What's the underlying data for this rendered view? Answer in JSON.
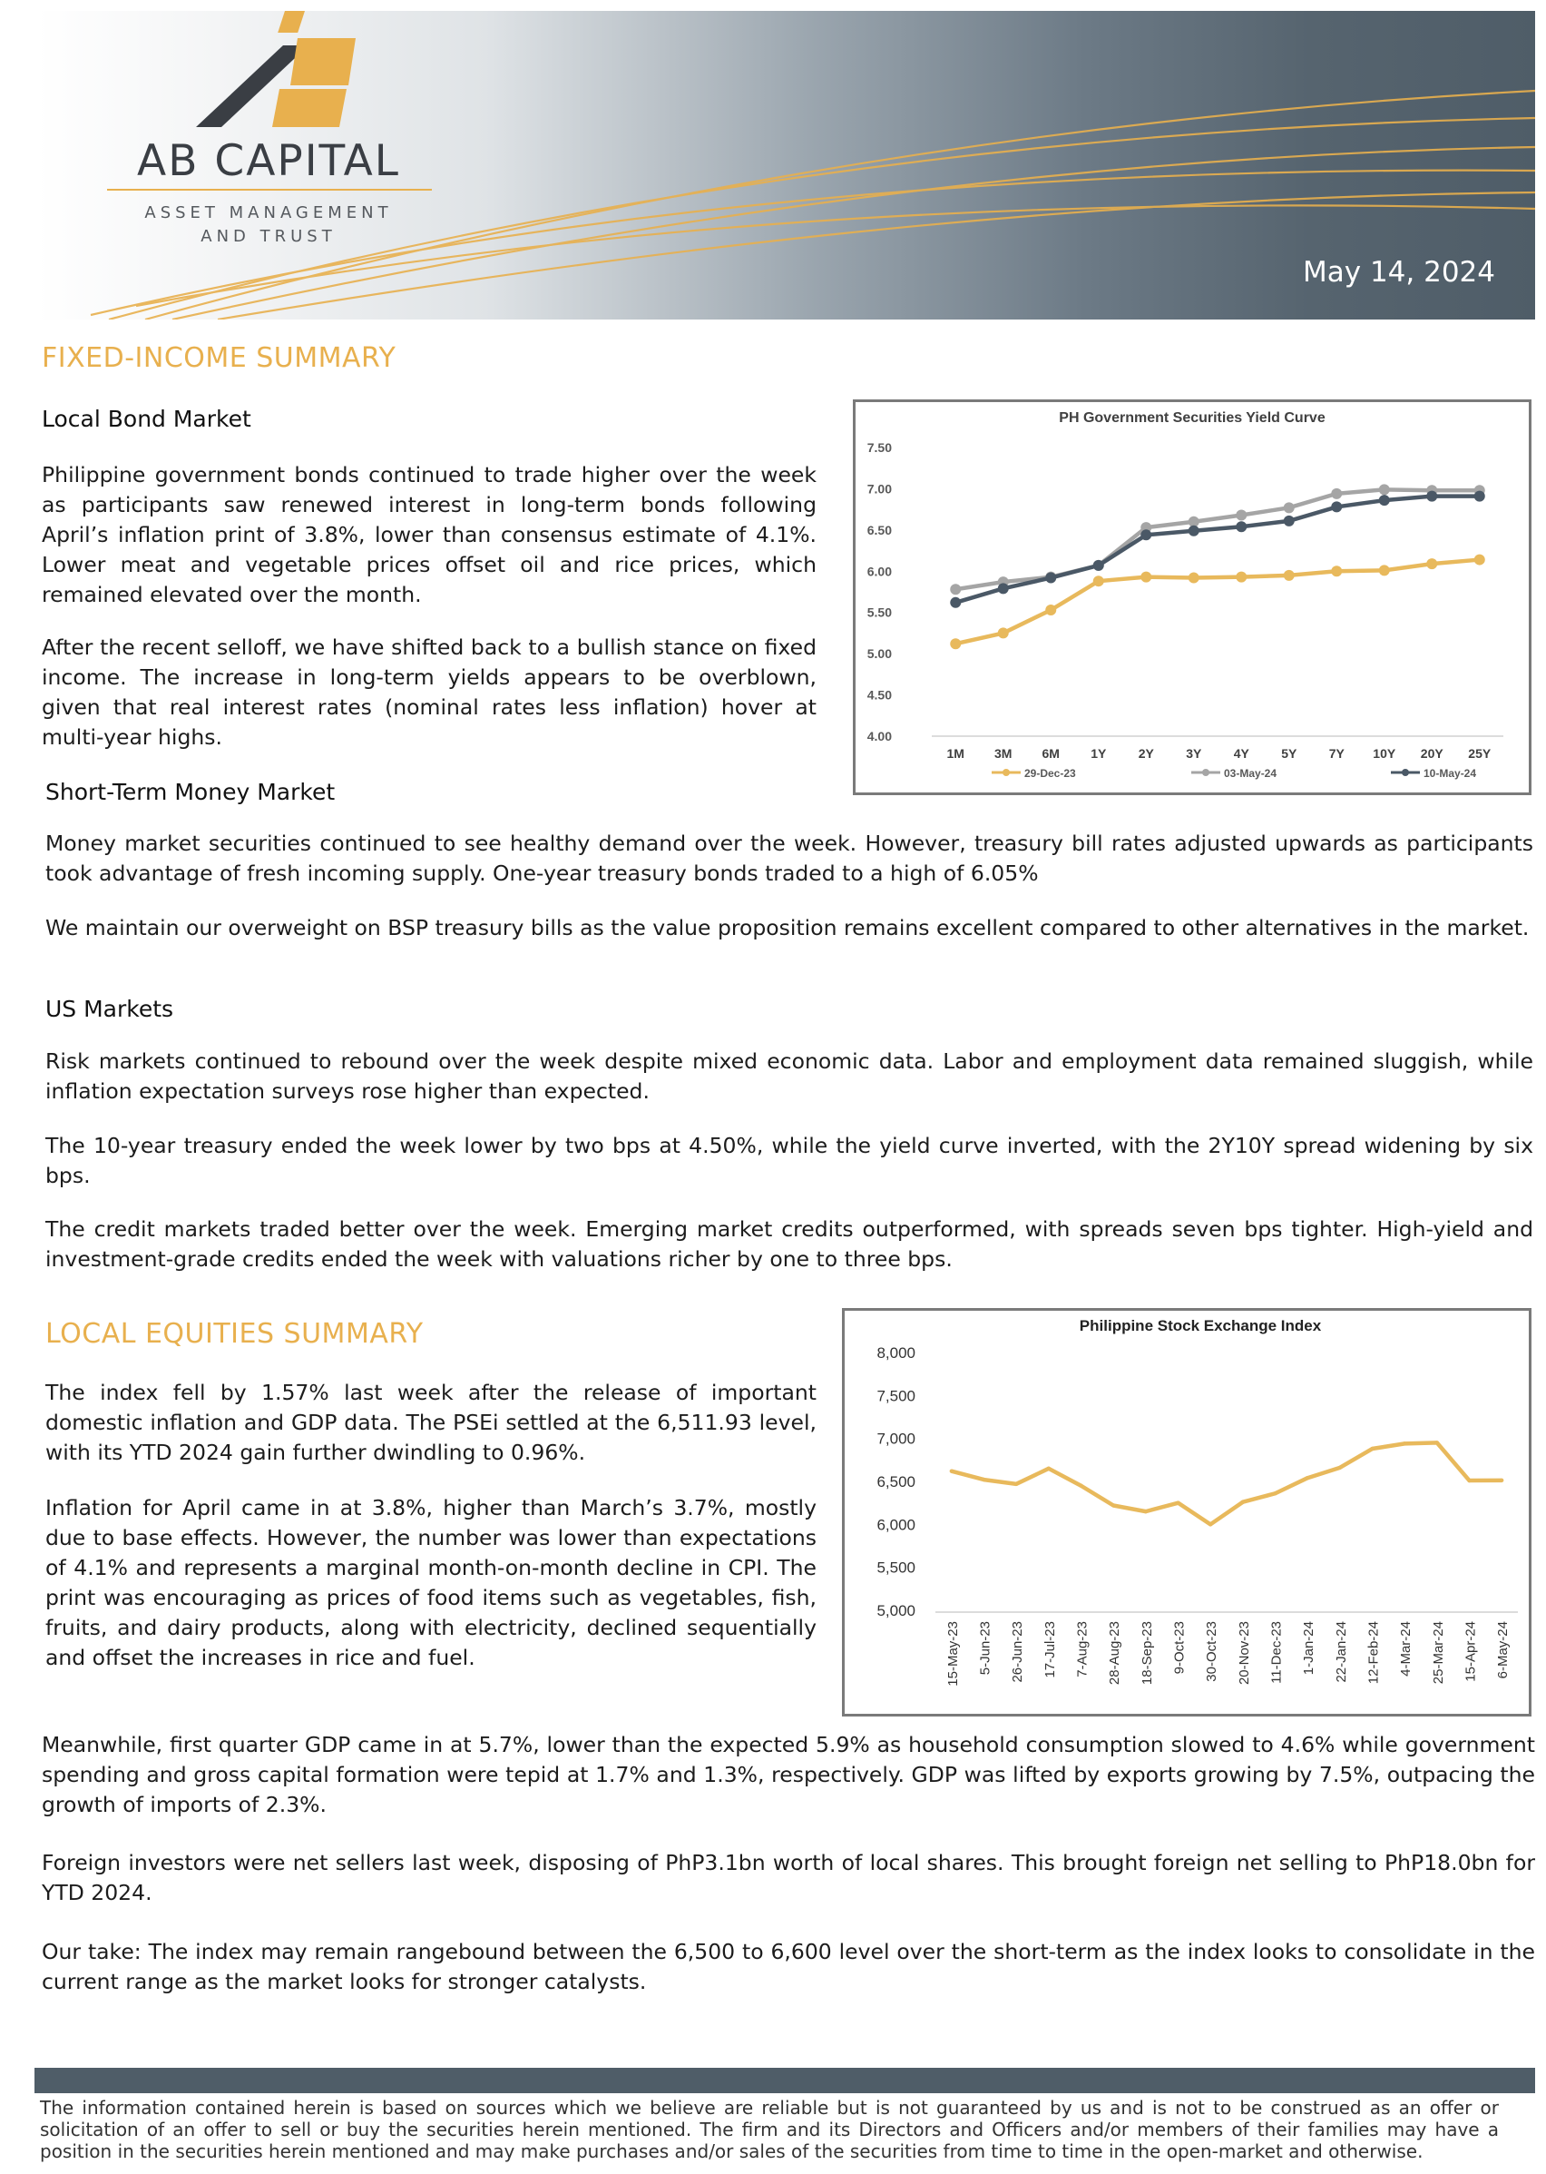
{
  "header": {
    "logo_name": "AB CAPITAL",
    "logo_sub_line1": "ASSET MANAGEMENT",
    "logo_sub_line2": "AND TRUST",
    "date": "May 14, 2024",
    "colors": {
      "gold": "#e8b04e",
      "slate": "#4f5d68",
      "dark": "#3a3e44"
    }
  },
  "fixed_income": {
    "title": "FIXED-INCOME SUMMARY",
    "local_bond": {
      "heading": "Local Bond Market",
      "p1": "Philippine government bonds continued to trade higher over the week as participants saw renewed interest in long-term bonds following April’s inflation print of 3.8%, lower than consensus estimate of 4.1%. Lower meat and vegetable prices offset oil and rice prices, which remained elevated over the month.",
      "p2": "After the recent selloff, we have shifted back to a bullish stance on fixed income. The increase in long-term yields appears to be overblown, given that real interest rates (nominal rates less inflation) hover at multi-year highs."
    },
    "money_market": {
      "heading": "Short-Term Money Market",
      "p1": "Money market securities continued to see healthy demand over the week. However, treasury bill rates adjusted upwards as participants took advantage of fresh incoming supply. One-year treasury bonds traded to a high of 6.05%",
      "p2": "We maintain our overweight on BSP treasury bills as the value proposition remains excellent compared to other alternatives in the market."
    },
    "us_markets": {
      "heading": "US Markets",
      "p1": "Risk markets continued to rebound over the week despite mixed economic data. Labor and employment data remained sluggish, while inflation expectation surveys rose higher than expected.",
      "p2": "The 10-year treasury ended the week lower by two bps at 4.50%, while the yield curve inverted, with the 2Y10Y spread widening by six bps.",
      "p3": "The credit markets traded better over the week. Emerging market credits outperformed, with spreads seven bps tighter. High-yield and investment-grade credits ended the week with valuations richer by one to three bps."
    }
  },
  "local_equities": {
    "title": "LOCAL EQUITIES SUMMARY",
    "p1": "The index fell by 1.57% last week after the release of important domestic inflation and GDP data. The PSEi settled at the 6,511.93 level, with its YTD 2024 gain further dwindling to 0.96%.",
    "p2": "Inflation for April came in at 3.8%, higher than March’s 3.7%, mostly due to base effects.  However, the number was lower than expectations of 4.1% and represents a marginal month-on-month decline in CPI. The print was encouraging as prices of food items such as vegetables, fish, fruits, and dairy products, along with electricity, declined sequentially and offset the increases in rice and fuel.",
    "p3": "Meanwhile, first quarter GDP came in at 5.7%, lower than the expected 5.9% as household consumption slowed to 4.6% while government spending and gross capital formation were tepid at 1.7% and 1.3%, respectively. GDP was lifted by exports growing by 7.5%, outpacing the growth of imports of 2.3%.",
    "p4": "Foreign investors were net sellers last week, disposing of PhP3.1bn worth of local shares. This brought foreign net selling to PhP18.0bn for YTD 2024.",
    "p5": "Our take: The index may remain rangebound between the 6,500 to 6,600 level over the short-term as the index looks to consolidate in the current range as the market looks for stronger catalysts."
  },
  "disclaimer": "The information contained herein is based on sources which we believe are reliable but is not guaranteed by us and is not to be construed as an offer or solicitation of an offer to sell or buy the securities herein mentioned. The firm and its Directors and Officers and/or members of their families may have a position in the securities herein mentioned and may make purchases and/or sales of the securities from time to time in the open-market and otherwise.",
  "chart_data": [
    {
      "type": "line",
      "title": "PH Government Securities Yield Curve",
      "categories": [
        "1M",
        "3M",
        "6M",
        "1Y",
        "2Y",
        "3Y",
        "4Y",
        "5Y",
        "7Y",
        "10Y",
        "20Y",
        "25Y"
      ],
      "ylim": [
        4.0,
        7.5
      ],
      "yticks": [
        "4.00",
        "4.50",
        "5.00",
        "5.50",
        "6.00",
        "6.50",
        "7.00",
        "7.50"
      ],
      "legend_position": "bottom",
      "grid": false,
      "series": [
        {
          "name": "29-Dec-23",
          "color": "#e8b95c",
          "values": [
            5.12,
            5.25,
            5.53,
            5.88,
            5.93,
            5.92,
            5.93,
            5.95,
            6.0,
            6.01,
            6.09,
            6.14
          ]
        },
        {
          "name": "03-May-24",
          "color": "#a5a5a5",
          "values": [
            5.78,
            5.87,
            5.93,
            6.07,
            6.53,
            6.6,
            6.68,
            6.77,
            6.94,
            6.99,
            6.98,
            6.98
          ]
        },
        {
          "name": "10-May-24",
          "color": "#4a5866",
          "values": [
            5.62,
            5.79,
            5.92,
            6.07,
            6.44,
            6.49,
            6.54,
            6.61,
            6.78,
            6.86,
            6.91,
            6.91
          ]
        }
      ]
    },
    {
      "type": "line",
      "title": "Philippine Stock Exchange Index",
      "categories": [
        "15-May-23",
        "5-Jun-23",
        "26-Jun-23",
        "17-Jul-23",
        "7-Aug-23",
        "28-Aug-23",
        "18-Sep-23",
        "9-Oct-23",
        "30-Oct-23",
        "20-Nov-23",
        "11-Dec-23",
        "1-Jan-24",
        "22-Jan-24",
        "12-Feb-24",
        "4-Mar-24",
        "25-Mar-24",
        "15-Apr-24",
        "6-May-24"
      ],
      "ylim": [
        5000,
        8000
      ],
      "yticks": [
        "5,000",
        "5,500",
        "6,000",
        "6,500",
        "7,000",
        "7,500",
        "8,000"
      ],
      "legend_position": "none",
      "grid": false,
      "series": [
        {
          "name": "",
          "color": "#e8b95c",
          "values": [
            6620,
            6520,
            6470,
            6650,
            6450,
            6220,
            6150,
            6250,
            6000,
            6260,
            6360,
            6540,
            6660,
            6880,
            6940,
            6950,
            6510,
            6512
          ]
        }
      ]
    }
  ]
}
